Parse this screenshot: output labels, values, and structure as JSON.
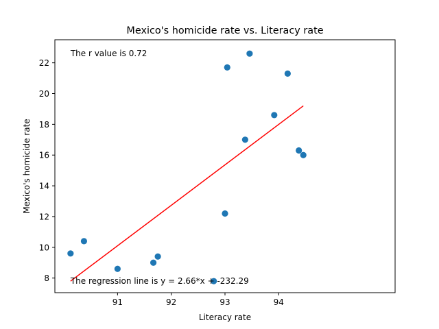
{
  "chart_data": {
    "type": "scatter",
    "title": "Mexico's homicide rate vs. Literacy rate",
    "xlabel": "Literacy rate",
    "ylabel": "Mexico's homicide rate",
    "xlim": [
      80.08,
      81.6
    ],
    "ylim": [
      7.05,
      23.5
    ],
    "x_ticks": [
      {
        "value": 80.36,
        "label": "91"
      },
      {
        "value": 80.6,
        "label": "92"
      },
      {
        "value": 80.84,
        "label": "93"
      },
      {
        "value": 81.08,
        "label": "94"
      }
    ],
    "y_ticks": [
      8,
      10,
      12,
      14,
      16,
      18,
      20,
      22
    ],
    "points": {
      "color": "#1f77b4",
      "x": [
        80.15,
        80.21,
        80.36,
        80.52,
        80.54,
        80.79,
        80.84,
        80.85,
        80.93,
        80.95,
        81.06,
        81.12,
        81.17,
        81.19
      ],
      "y": [
        9.6,
        10.4,
        8.6,
        9.0,
        9.4,
        7.8,
        12.2,
        21.7,
        17.0,
        22.6,
        18.6,
        21.3,
        16.3,
        16.0
      ]
    },
    "regression": {
      "color": "#ff0000",
      "x": [
        80.15,
        81.19
      ],
      "y": [
        7.8,
        19.2
      ]
    },
    "annotations": [
      {
        "id": "r-value",
        "text": "The r value is 0.72"
      },
      {
        "id": "regression-eq",
        "text": "The regression line is y = 2.66*x + -232.29"
      }
    ]
  }
}
